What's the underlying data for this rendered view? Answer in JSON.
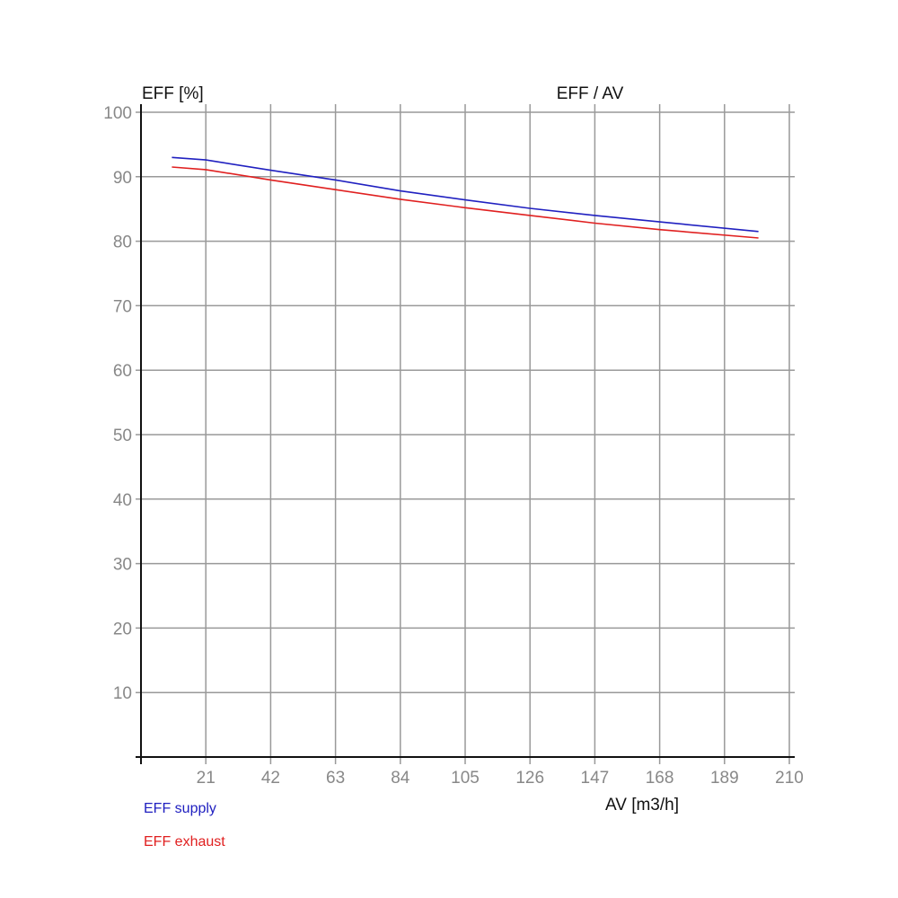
{
  "chart_data": {
    "type": "line",
    "title": "EFF / AV",
    "xlabel": "AV [m3/h]",
    "ylabel": "EFF [%]",
    "xlim": [
      0,
      210
    ],
    "ylim": [
      0,
      100
    ],
    "x_ticks": [
      21,
      42,
      63,
      84,
      105,
      126,
      147,
      168,
      189,
      210
    ],
    "y_ticks": [
      10,
      20,
      30,
      40,
      50,
      60,
      70,
      80,
      90,
      100
    ],
    "grid": true,
    "legend_placement": "bottom-left",
    "x": [
      10,
      21,
      42,
      63,
      84,
      105,
      126,
      147,
      168,
      200
    ],
    "series": [
      {
        "name": "EFF supply",
        "color": "#2020c0",
        "values": [
          93.0,
          92.6,
          91.0,
          89.5,
          87.8,
          86.4,
          85.1,
          84.0,
          83.0,
          81.5
        ]
      },
      {
        "name": "EFF exhaust",
        "color": "#e02020",
        "values": [
          91.5,
          91.1,
          89.5,
          88.0,
          86.5,
          85.2,
          84.0,
          82.8,
          81.8,
          80.5
        ]
      }
    ]
  }
}
